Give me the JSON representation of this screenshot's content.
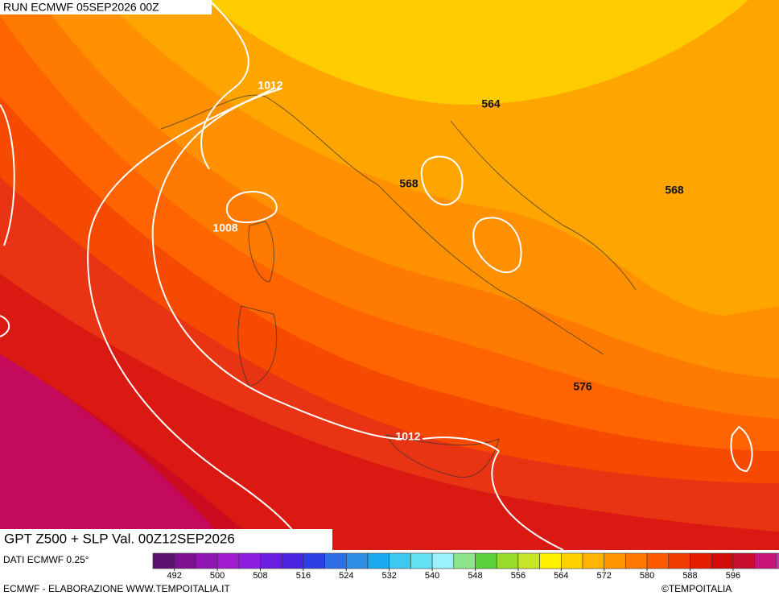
{
  "header": {
    "run": "RUN ECMWF 05SEP2026 00Z"
  },
  "map": {
    "contour_labels": [
      "1012",
      "564",
      "568",
      "1008",
      "568",
      "576",
      "1012"
    ]
  },
  "footer": {
    "title": "GPT Z500 + SLP Val. 00Z12SEP2026",
    "source": "DATI ECMWF 0.25°",
    "credit": "ECMWF - ELABORAZIONE WWW.TEMPOITALIA.IT",
    "copyright": "©TEMPOITALIA"
  },
  "legend": {
    "ticks": [
      492,
      500,
      508,
      516,
      524,
      532,
      540,
      548,
      556,
      564,
      572,
      580,
      588,
      596
    ],
    "colors": [
      "#5c0f6f",
      "#7d0f91",
      "#8f16b0",
      "#a01bd0",
      "#8c1fe0",
      "#6a1fe0",
      "#4a24e0",
      "#2e3fe6",
      "#2e6ee6",
      "#2e8ee6",
      "#1aaaf0",
      "#3cc8f0",
      "#64e0f5",
      "#9af2fa",
      "#8ce68c",
      "#5ad23c",
      "#96dc28",
      "#c8e628",
      "#fff000",
      "#ffd200",
      "#ffb400",
      "#ff9600",
      "#ff7800",
      "#ff5a00",
      "#f03c00",
      "#e61e00",
      "#d20a0a",
      "#c8102e",
      "#c8147a",
      "#d232a0",
      "#e65ac8",
      "#f58ce6"
    ]
  }
}
